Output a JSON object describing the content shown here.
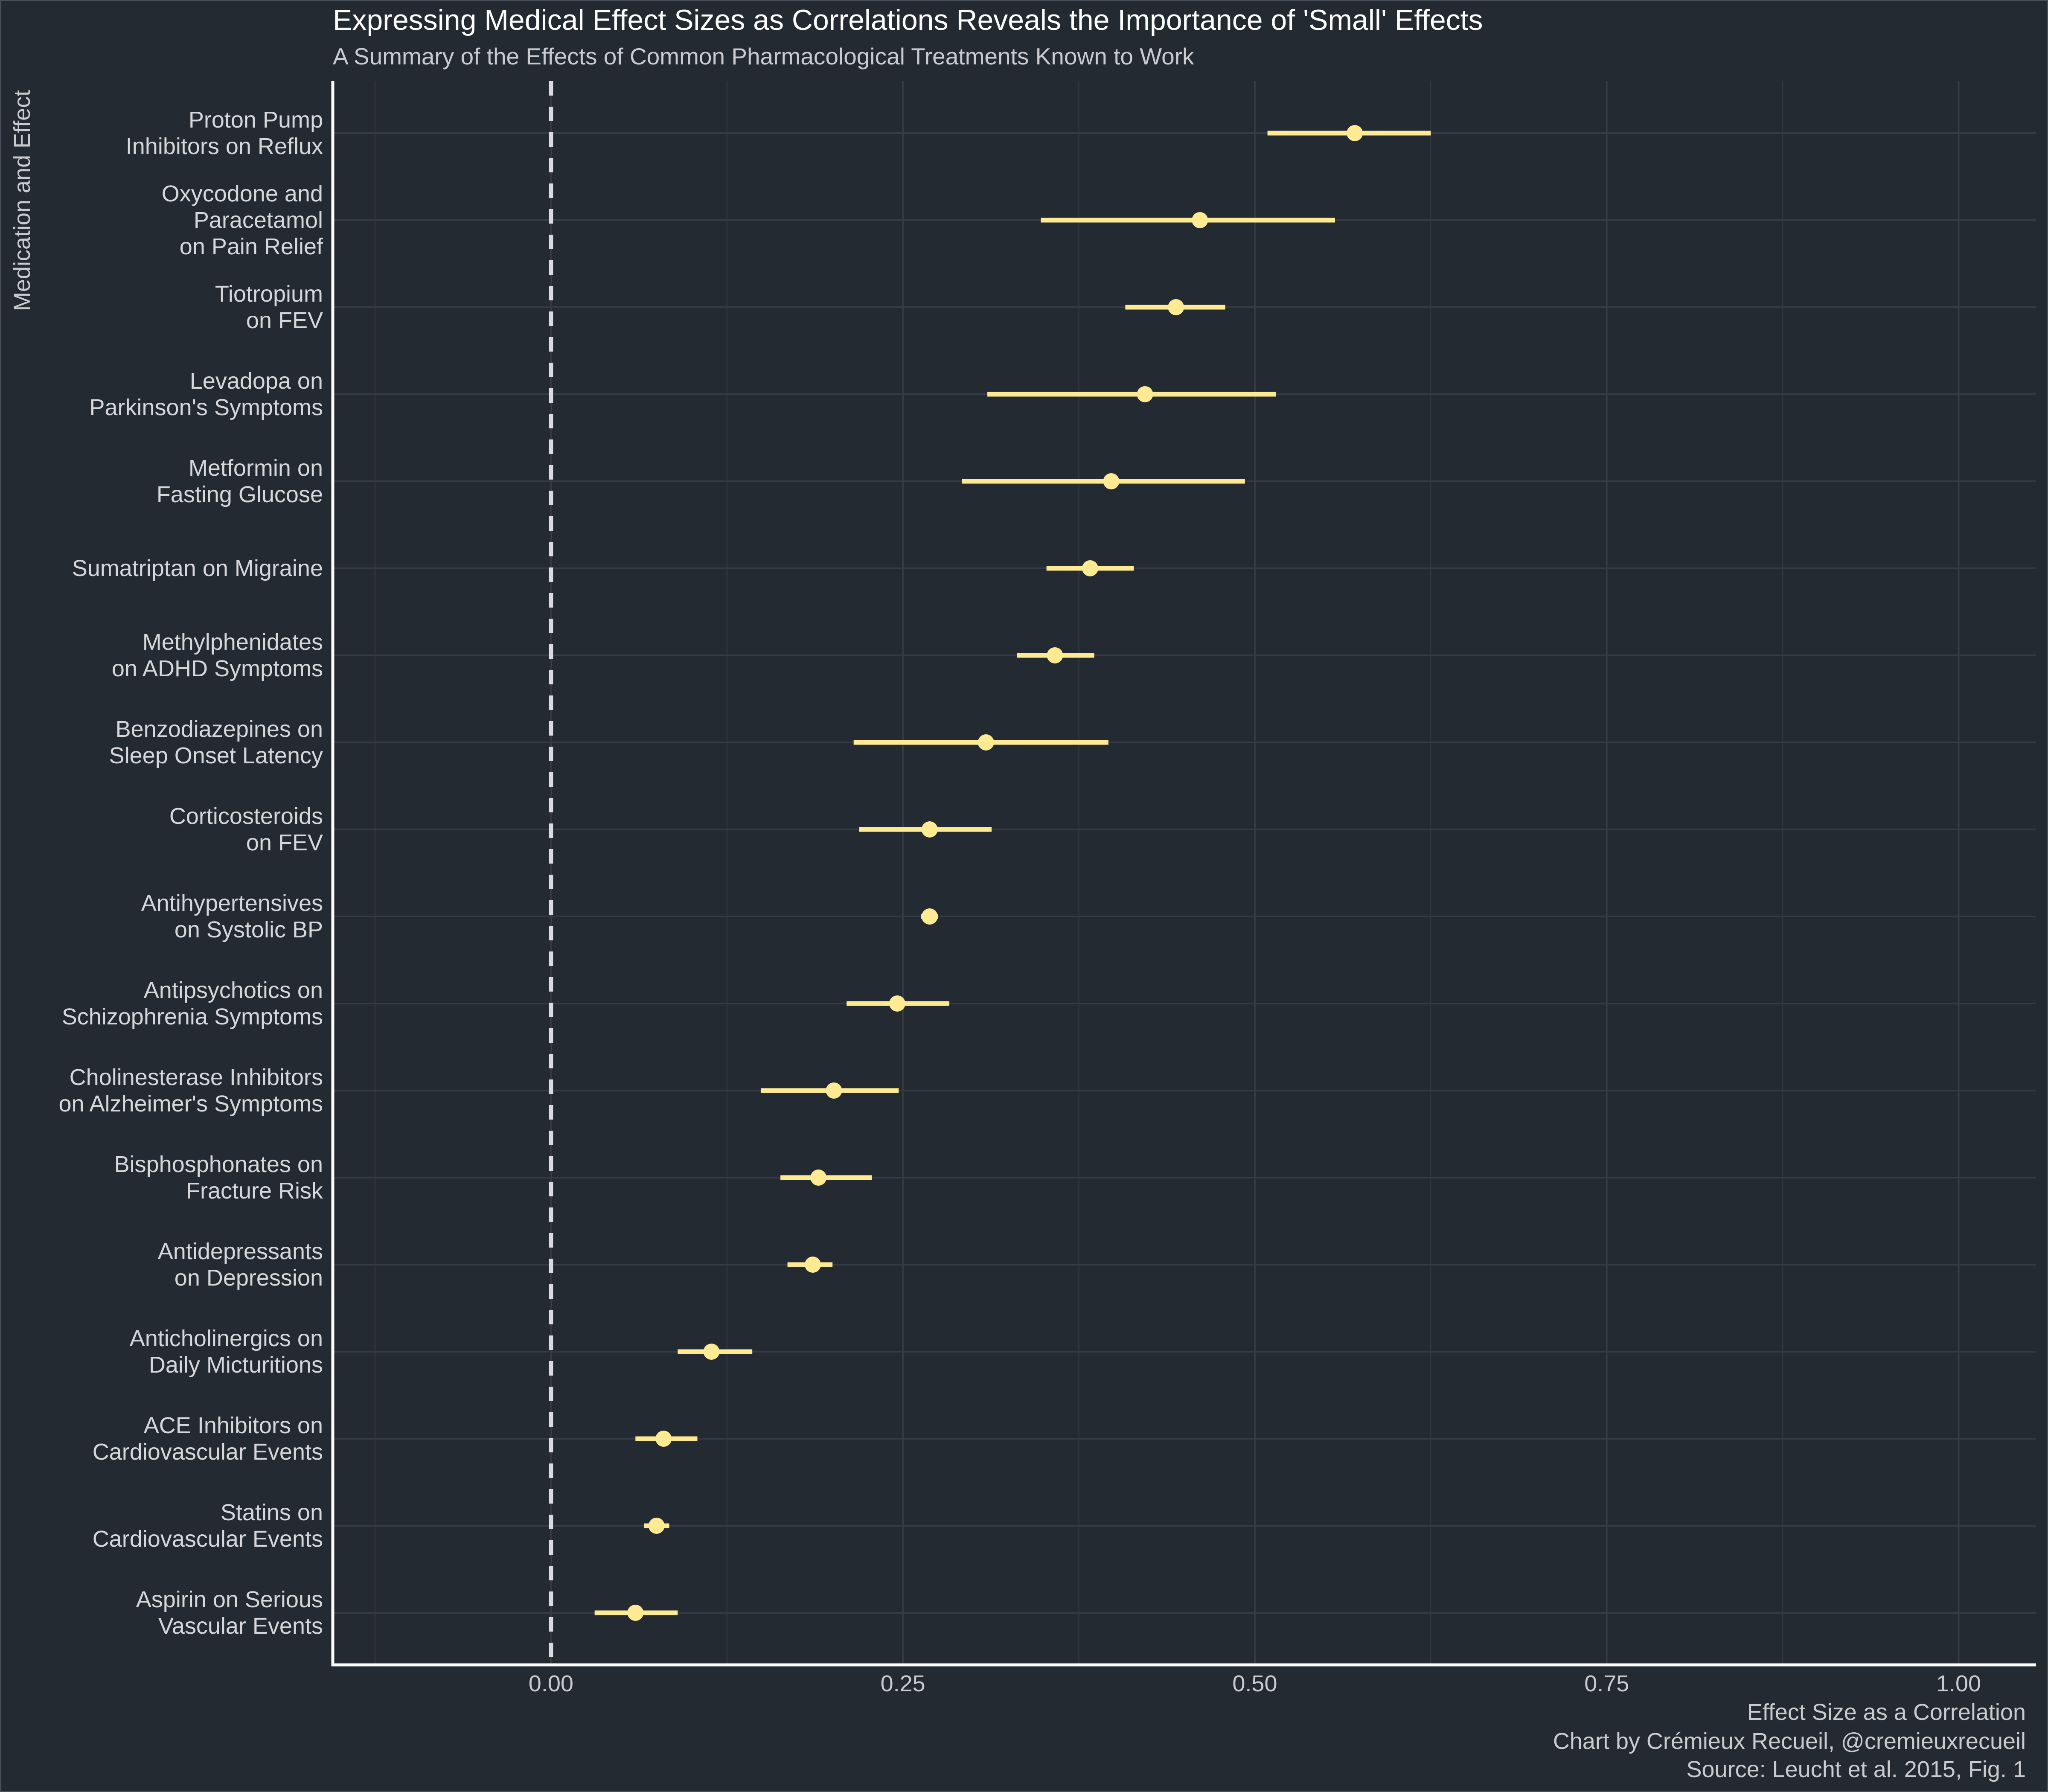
{
  "title": "Expressing Medical Effect Sizes as Correlations Reveals the Importance of 'Small' Effects",
  "subtitle": "A Summary of the Effects of Common Pharmacological Treatments Known to Work",
  "footer": {
    "credit": "Chart by Crémieux Recueil, @cremieuxrecueil",
    "source": "Source: Leucht et al. 2015, Fig. 1"
  },
  "colors": {
    "background": "#242a32",
    "point": "#ffea94",
    "grid": "#353b45",
    "reference_line": "#d9dbe0",
    "axis": "#ffffff"
  },
  "chart_data": {
    "type": "scatter",
    "subtype": "point-range (forest plot)",
    "xlabel": "Effect Size as a Correlation",
    "ylabel": "Medication and Effect",
    "xlim": [
      -0.155,
      1.055
    ],
    "x_ticks": [
      0.0,
      0.25,
      0.5,
      0.75,
      1.0
    ],
    "x_tick_labels": [
      "0.00",
      "0.25",
      "0.50",
      "0.75",
      "1.00"
    ],
    "reference_line": {
      "x": 0,
      "style": "dashed"
    },
    "grid": true,
    "items": [
      {
        "label": [
          "Proton Pump",
          "Inhibitors on Reflux"
        ],
        "estimate": 0.571,
        "low": 0.509,
        "high": 0.625
      },
      {
        "label": [
          "Oxycodone and",
          "Paracetamol",
          "on Pain Relief"
        ],
        "estimate": 0.461,
        "low": 0.348,
        "high": 0.557
      },
      {
        "label": [
          "Tiotropium",
          "on FEV"
        ],
        "estimate": 0.444,
        "low": 0.408,
        "high": 0.479
      },
      {
        "label": [
          "Levadopa on",
          "Parkinson's Symptoms"
        ],
        "estimate": 0.422,
        "low": 0.31,
        "high": 0.515
      },
      {
        "label": [
          "Metformin on",
          "Fasting Glucose"
        ],
        "estimate": 0.398,
        "low": 0.292,
        "high": 0.493
      },
      {
        "label": [
          "Sumatriptan on Migraine"
        ],
        "estimate": 0.383,
        "low": 0.352,
        "high": 0.414
      },
      {
        "label": [
          "Methylphenidates",
          "on ADHD Symptoms"
        ],
        "estimate": 0.358,
        "low": 0.331,
        "high": 0.386
      },
      {
        "label": [
          "Benzodiazepines on",
          "Sleep Onset Latency"
        ],
        "estimate": 0.309,
        "low": 0.215,
        "high": 0.396
      },
      {
        "label": [
          "Corticosteroids",
          "on FEV"
        ],
        "estimate": 0.269,
        "low": 0.219,
        "high": 0.313
      },
      {
        "label": [
          "Antihypertensives",
          "on Systolic BP"
        ],
        "estimate": 0.269,
        "low": 0.263,
        "high": 0.275
      },
      {
        "label": [
          "Antipsychotics on",
          "Schizophrenia Symptoms"
        ],
        "estimate": 0.246,
        "low": 0.21,
        "high": 0.283
      },
      {
        "label": [
          "Cholinesterase Inhibitors",
          "on Alzheimer's Symptoms"
        ],
        "estimate": 0.201,
        "low": 0.149,
        "high": 0.247
      },
      {
        "label": [
          "Bisphosphonates on",
          "Fracture Risk"
        ],
        "estimate": 0.19,
        "low": 0.163,
        "high": 0.228
      },
      {
        "label": [
          "Antidepressants",
          "on Depression"
        ],
        "estimate": 0.186,
        "low": 0.168,
        "high": 0.2
      },
      {
        "label": [
          "Anticholinergics on",
          "Daily Micturitions"
        ],
        "estimate": 0.114,
        "low": 0.09,
        "high": 0.143
      },
      {
        "label": [
          "ACE Inhibitors on",
          "Cardiovascular Events"
        ],
        "estimate": 0.08,
        "low": 0.06,
        "high": 0.104
      },
      {
        "label": [
          "Statins on",
          "Cardiovascular Events"
        ],
        "estimate": 0.075,
        "low": 0.066,
        "high": 0.084
      },
      {
        "label": [
          "Aspirin on Serious",
          "Vascular Events"
        ],
        "estimate": 0.06,
        "low": 0.031,
        "high": 0.09
      }
    ]
  }
}
